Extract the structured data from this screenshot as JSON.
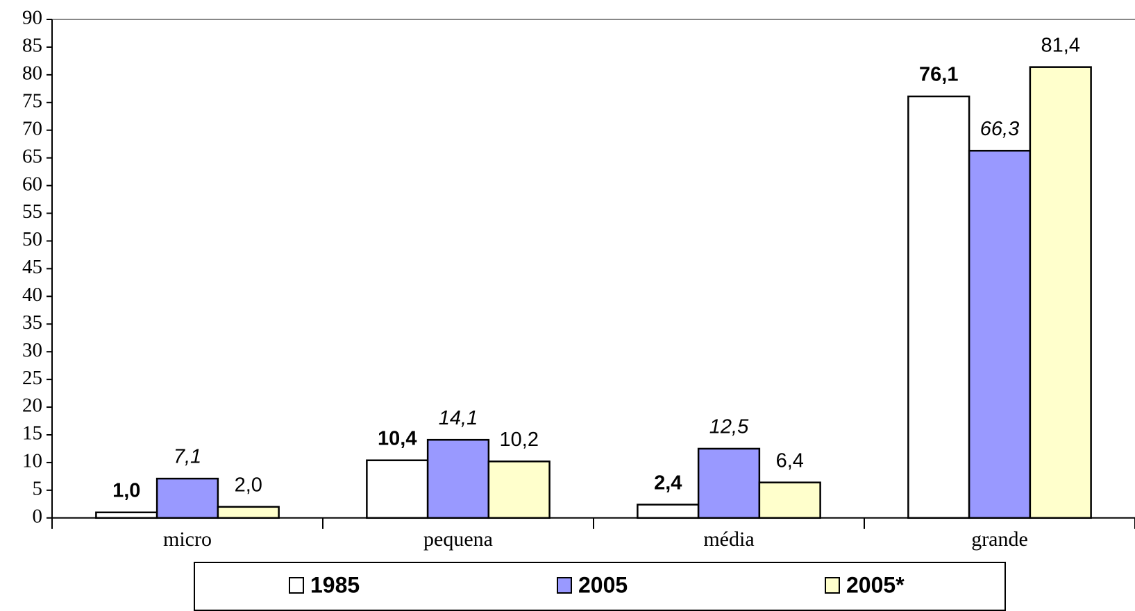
{
  "chart_data": {
    "type": "bar",
    "categories": [
      "micro",
      "pequena",
      "média",
      "grande"
    ],
    "series": [
      {
        "name": "1985",
        "color": "#ffffff",
        "values": [
          1.0,
          10.4,
          2.4,
          76.1
        ],
        "value_labels": [
          "1,0",
          "10,4",
          "2,4",
          "76,1"
        ]
      },
      {
        "name": "2005",
        "color": "#9999ff",
        "values": [
          7.1,
          14.1,
          12.5,
          66.3
        ],
        "value_labels": [
          "7,1",
          "14,1",
          "12,5",
          "66,3"
        ]
      },
      {
        "name": "2005*",
        "color": "#ffffcc",
        "values": [
          2.0,
          10.2,
          6.4,
          81.4
        ],
        "value_labels": [
          "2,0",
          "10,2",
          "6,4",
          "81,4"
        ]
      }
    ],
    "ylim": [
      0,
      90
    ],
    "yticks": [
      0,
      5,
      10,
      15,
      20,
      25,
      30,
      35,
      40,
      45,
      50,
      55,
      60,
      65,
      70,
      75,
      80,
      85,
      90
    ],
    "legend": "bottom"
  }
}
